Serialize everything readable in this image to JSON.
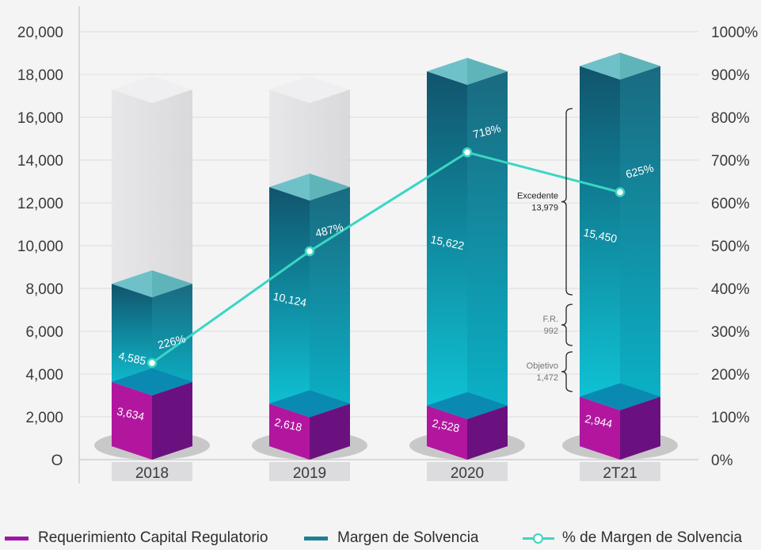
{
  "chart_data": {
    "type": "bar",
    "categories": [
      "2018",
      "2019",
      "2020",
      "2T21"
    ],
    "series": [
      {
        "name": "Requerimiento Capital Regulatorio",
        "values": [
          3634,
          2618,
          2528,
          2944
        ],
        "color": "#8e1a9a"
      },
      {
        "name": "Margen de Solvencia",
        "values": [
          4585,
          10124,
          15622,
          15450
        ],
        "color": "#1f7f94"
      },
      {
        "name": "% de Margen de Solvencia",
        "values": [
          226,
          487,
          718,
          625
        ],
        "axis": "right",
        "line": true,
        "color": "#3ad6c2"
      }
    ],
    "bar_labels": {
      "requerimiento": [
        "3,634",
        "2,618",
        "2,528",
        "2,944"
      ],
      "margen": [
        "4,585",
        "10,124",
        "15,622",
        "15,450"
      ],
      "pct": [
        "226%",
        "487%",
        "718%",
        "625%"
      ]
    },
    "y_left": {
      "ylim": [
        0,
        20000
      ],
      "ticks": [
        "O",
        "2,000",
        "4,000",
        "6,000",
        "8,000",
        "10,000",
        "12,000",
        "14,000",
        "16,000",
        "18,000",
        "20,000"
      ]
    },
    "y_right": {
      "ylim": [
        0,
        1000
      ],
      "ticks": [
        "0%",
        "100%",
        "200%",
        "300%",
        "400%",
        "500%",
        "600%",
        "700%",
        "800%",
        "900%",
        "1000%"
      ]
    },
    "annotations": [
      {
        "label": "Excedente",
        "value": "13,979"
      },
      {
        "label": "F.R.",
        "value": "992"
      },
      {
        "label": "Objetivo",
        "value": "1,472"
      }
    ],
    "grid": true,
    "legend_position": "bottom"
  },
  "legend": {
    "items": [
      "Requerimiento Capital Regulatorio",
      "Margen de Solvencia",
      "% de Margen de Solvencia"
    ]
  }
}
